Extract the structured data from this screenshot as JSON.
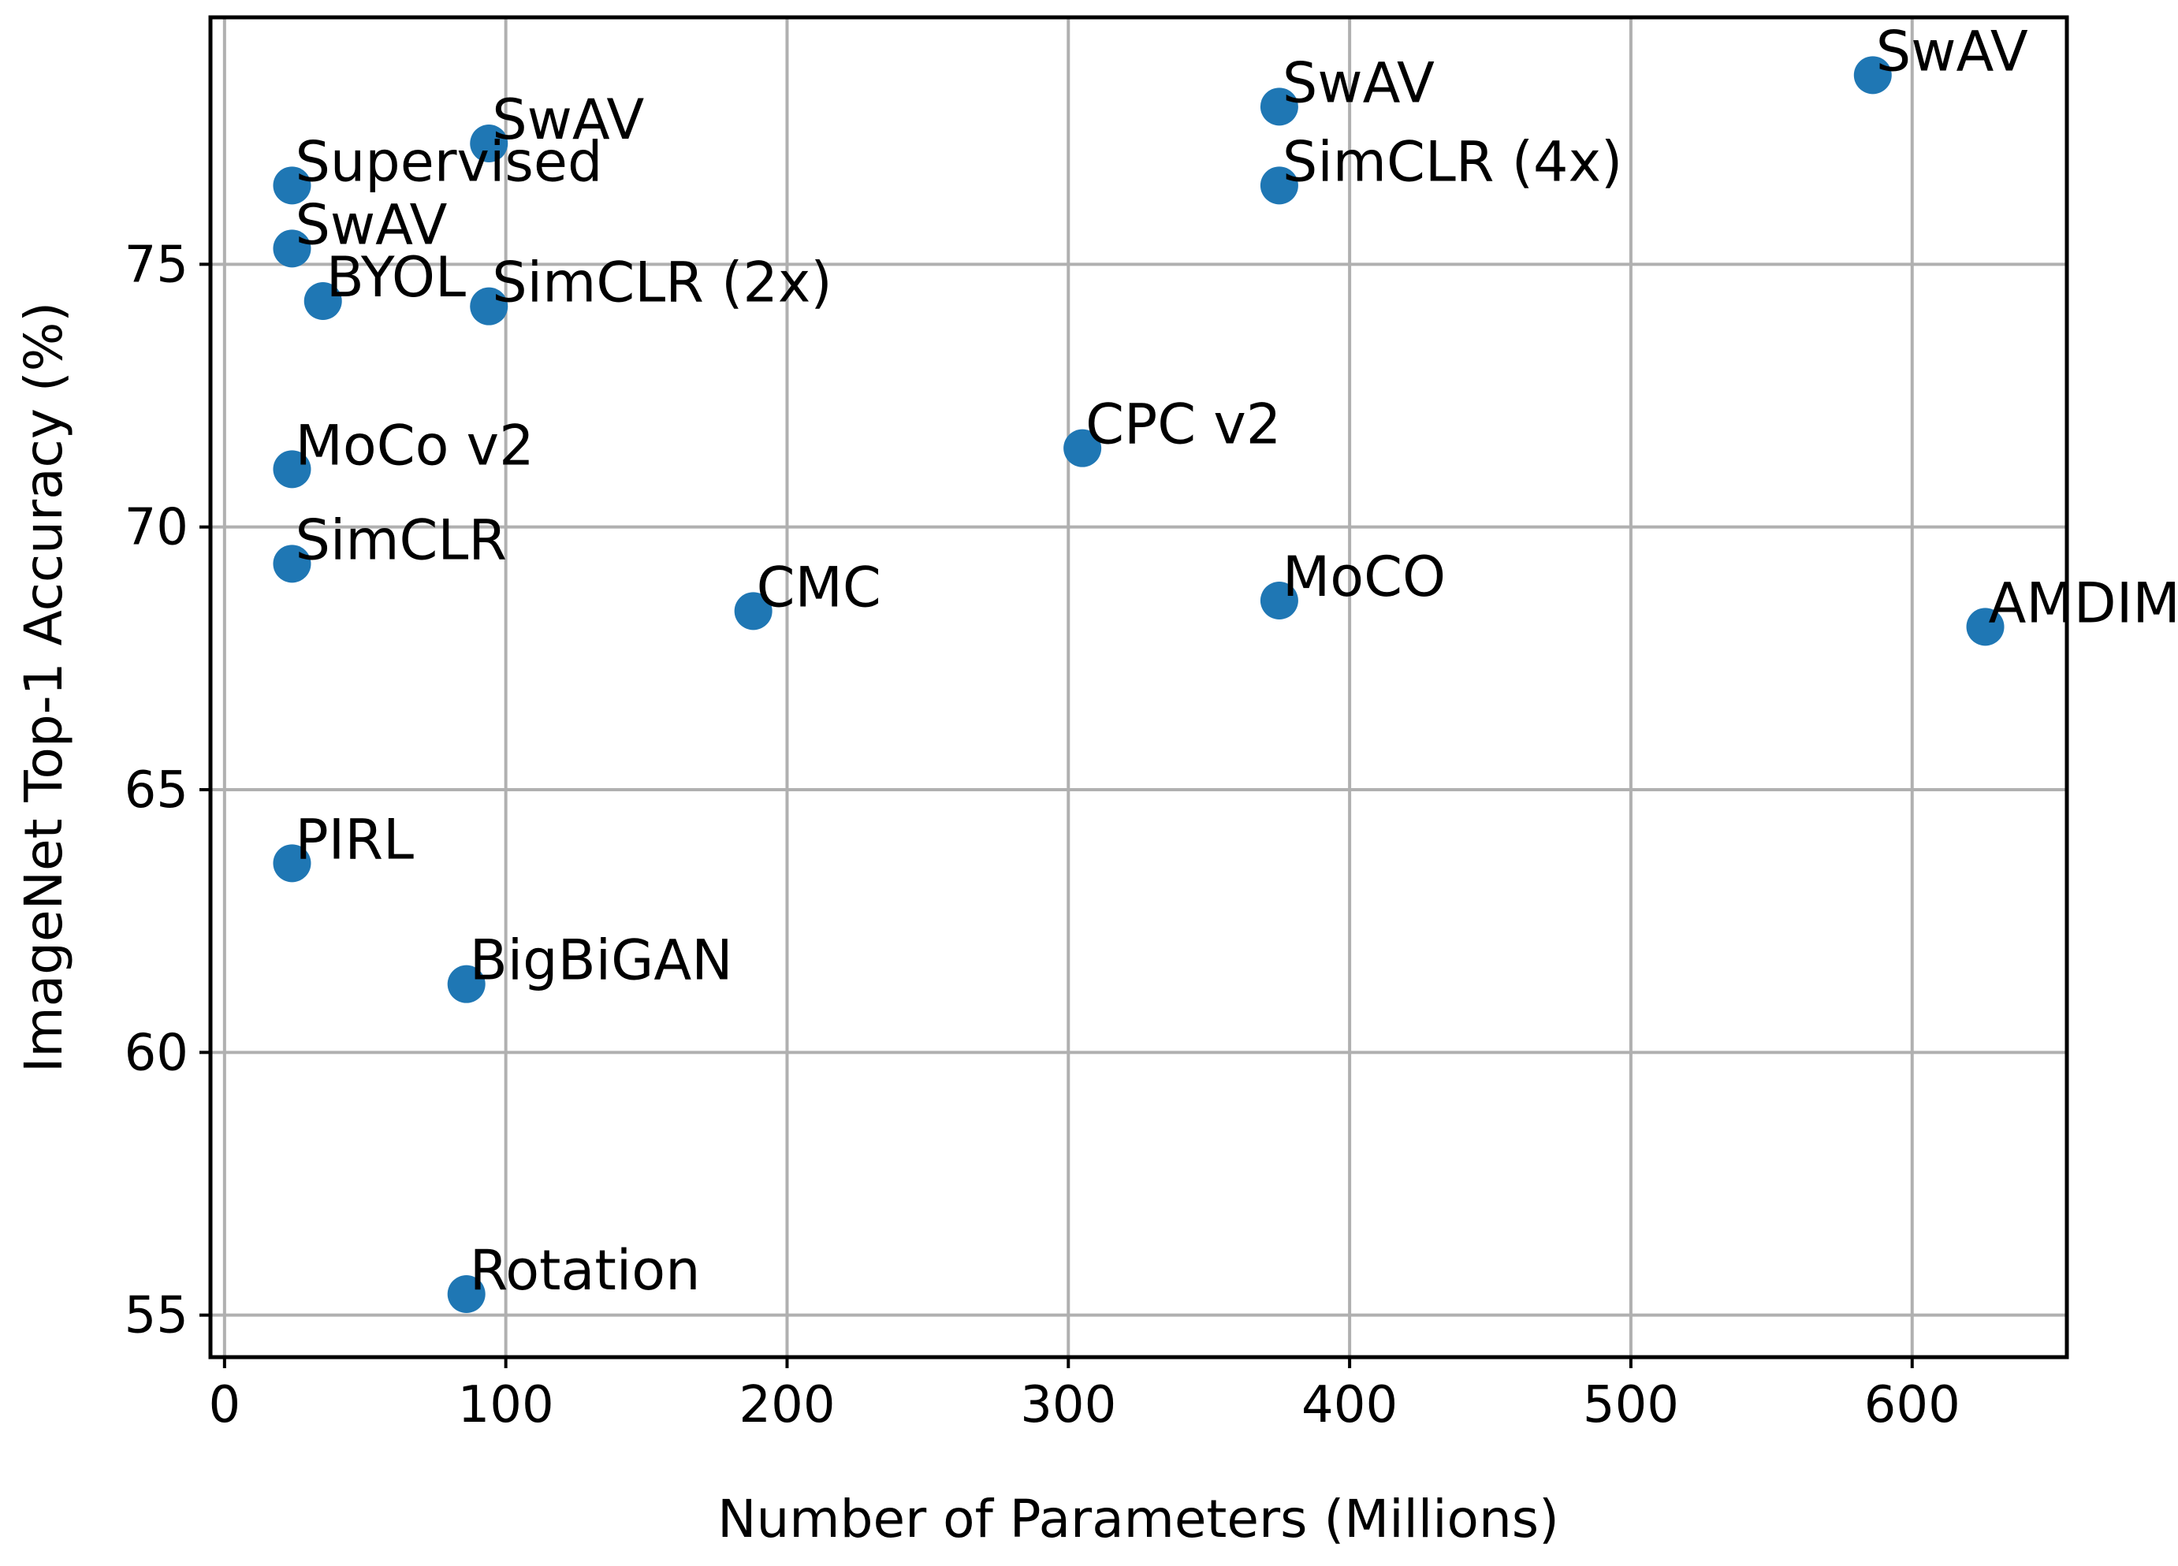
{
  "chart_data": {
    "type": "scatter",
    "title": "",
    "xlabel": "Number of Parameters (Millions)",
    "ylabel": "ImageNet Top-1 Accuracy (%)",
    "xlim": [
      -5,
      655
    ],
    "ylim": [
      54.2,
      79.7
    ],
    "xticks": [
      0,
      100,
      200,
      300,
      400,
      500,
      600
    ],
    "yticks": [
      55,
      60,
      65,
      70,
      75
    ],
    "grid": true,
    "marker_color": "#1f77b4",
    "points": [
      {
        "label": "Supervised",
        "x": 24,
        "y": 76.5
      },
      {
        "label": "SwAV",
        "x": 24,
        "y": 75.3
      },
      {
        "label": "BYOL",
        "x": 35,
        "y": 74.3
      },
      {
        "label": "SwAV",
        "x": 94,
        "y": 77.3
      },
      {
        "label": "SimCLR (2x)",
        "x": 94,
        "y": 74.2
      },
      {
        "label": "MoCo v2",
        "x": 24,
        "y": 71.1
      },
      {
        "label": "SimCLR",
        "x": 24,
        "y": 69.3
      },
      {
        "label": "PIRL",
        "x": 24,
        "y": 63.6
      },
      {
        "label": "BigBiGAN",
        "x": 86,
        "y": 61.3
      },
      {
        "label": "Rotation",
        "x": 86,
        "y": 55.4
      },
      {
        "label": "CMC",
        "x": 188,
        "y": 68.4
      },
      {
        "label": "CPC v2",
        "x": 305,
        "y": 71.5
      },
      {
        "label": "SwAV",
        "x": 375,
        "y": 78.0
      },
      {
        "label": "SimCLR (4x)",
        "x": 375,
        "y": 76.5
      },
      {
        "label": "MoCO",
        "x": 375,
        "y": 68.6
      },
      {
        "label": "SwAV",
        "x": 586,
        "y": 78.6
      },
      {
        "label": "AMDIM",
        "x": 626,
        "y": 68.1
      }
    ]
  }
}
